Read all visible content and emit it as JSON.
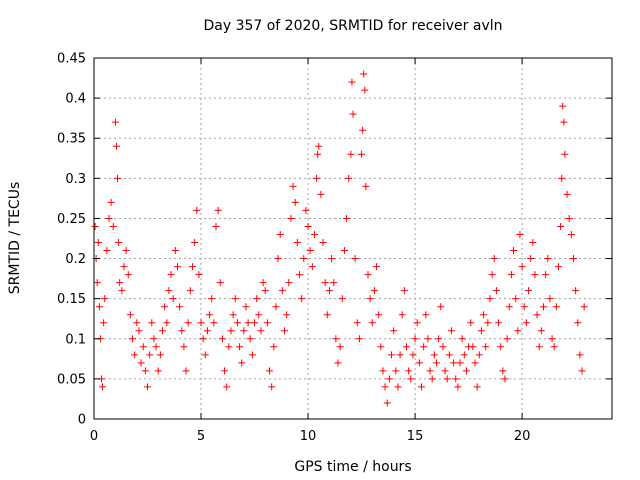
{
  "chart_data": {
    "type": "scatter",
    "title": "Day 357 of 2020, SRMTID for receiver avln",
    "xlabel": "GPS time / hours",
    "ylabel": "SRMTID / TECUs",
    "xlim": [
      0,
      24.2
    ],
    "ylim": [
      0,
      0.45
    ],
    "xticks": [
      0,
      5,
      10,
      15,
      20
    ],
    "xtick_labels": [
      "0",
      "5",
      "10",
      "15",
      "20"
    ],
    "yticks": [
      0,
      0.05,
      0.1,
      0.15,
      0.2,
      0.25,
      0.3,
      0.35,
      0.4,
      0.45
    ],
    "ytick_labels": [
      "0",
      "0.05",
      "0.1",
      "0.15",
      "0.2",
      "0.25",
      "0.3",
      "0.35",
      "0.4",
      "0.45"
    ],
    "grid": true,
    "marker": "+",
    "color": "#ff0000",
    "series": [
      {
        "name": "SRMTID",
        "points": [
          [
            0.05,
            0.24
          ],
          [
            0.1,
            0.2
          ],
          [
            0.15,
            0.17
          ],
          [
            0.2,
            0.22
          ],
          [
            0.25,
            0.14
          ],
          [
            0.3,
            0.1
          ],
          [
            0.35,
            0.05
          ],
          [
            0.4,
            0.04
          ],
          [
            0.45,
            0.12
          ],
          [
            0.5,
            0.15
          ],
          [
            0.6,
            0.21
          ],
          [
            0.7,
            0.25
          ],
          [
            0.8,
            0.27
          ],
          [
            0.9,
            0.24
          ],
          [
            1.0,
            0.37
          ],
          [
            1.05,
            0.34
          ],
          [
            1.1,
            0.3
          ],
          [
            1.15,
            0.22
          ],
          [
            1.2,
            0.17
          ],
          [
            1.3,
            0.16
          ],
          [
            1.4,
            0.19
          ],
          [
            1.5,
            0.21
          ],
          [
            1.6,
            0.18
          ],
          [
            1.7,
            0.13
          ],
          [
            1.8,
            0.1
          ],
          [
            1.9,
            0.08
          ],
          [
            2.0,
            0.12
          ],
          [
            2.1,
            0.11
          ],
          [
            2.2,
            0.07
          ],
          [
            2.3,
            0.09
          ],
          [
            2.4,
            0.06
          ],
          [
            2.5,
            0.04
          ],
          [
            2.6,
            0.08
          ],
          [
            2.7,
            0.12
          ],
          [
            2.8,
            0.1
          ],
          [
            2.9,
            0.09
          ],
          [
            3.0,
            0.06
          ],
          [
            3.1,
            0.08
          ],
          [
            3.2,
            0.11
          ],
          [
            3.3,
            0.14
          ],
          [
            3.4,
            0.12
          ],
          [
            3.5,
            0.16
          ],
          [
            3.6,
            0.18
          ],
          [
            3.7,
            0.15
          ],
          [
            3.8,
            0.21
          ],
          [
            3.9,
            0.19
          ],
          [
            4.0,
            0.14
          ],
          [
            4.1,
            0.11
          ],
          [
            4.2,
            0.09
          ],
          [
            4.3,
            0.06
          ],
          [
            4.4,
            0.12
          ],
          [
            4.5,
            0.16
          ],
          [
            4.6,
            0.19
          ],
          [
            4.7,
            0.22
          ],
          [
            4.8,
            0.26
          ],
          [
            4.9,
            0.18
          ],
          [
            5.0,
            0.12
          ],
          [
            5.1,
            0.1
          ],
          [
            5.2,
            0.08
          ],
          [
            5.3,
            0.11
          ],
          [
            5.4,
            0.13
          ],
          [
            5.5,
            0.15
          ],
          [
            5.6,
            0.12
          ],
          [
            5.7,
            0.24
          ],
          [
            5.8,
            0.26
          ],
          [
            5.9,
            0.17
          ],
          [
            6.0,
            0.1
          ],
          [
            6.1,
            0.06
          ],
          [
            6.2,
            0.04
          ],
          [
            6.3,
            0.09
          ],
          [
            6.4,
            0.11
          ],
          [
            6.5,
            0.13
          ],
          [
            6.6,
            0.15
          ],
          [
            6.7,
            0.12
          ],
          [
            6.8,
            0.09
          ],
          [
            6.9,
            0.07
          ],
          [
            7.0,
            0.11
          ],
          [
            7.1,
            0.14
          ],
          [
            7.2,
            0.12
          ],
          [
            7.3,
            0.1
          ],
          [
            7.4,
            0.08
          ],
          [
            7.5,
            0.12
          ],
          [
            7.6,
            0.15
          ],
          [
            7.7,
            0.13
          ],
          [
            7.8,
            0.11
          ],
          [
            7.9,
            0.17
          ],
          [
            8.0,
            0.16
          ],
          [
            8.1,
            0.12
          ],
          [
            8.2,
            0.06
          ],
          [
            8.3,
            0.04
          ],
          [
            8.4,
            0.09
          ],
          [
            8.5,
            0.14
          ],
          [
            8.6,
            0.2
          ],
          [
            8.7,
            0.23
          ],
          [
            8.8,
            0.16
          ],
          [
            8.9,
            0.11
          ],
          [
            9.0,
            0.13
          ],
          [
            9.1,
            0.17
          ],
          [
            9.2,
            0.25
          ],
          [
            9.3,
            0.29
          ],
          [
            9.4,
            0.27
          ],
          [
            9.5,
            0.22
          ],
          [
            9.6,
            0.18
          ],
          [
            9.7,
            0.15
          ],
          [
            9.8,
            0.2
          ],
          [
            9.9,
            0.26
          ],
          [
            10.0,
            0.24
          ],
          [
            10.1,
            0.21
          ],
          [
            10.2,
            0.19
          ],
          [
            10.3,
            0.23
          ],
          [
            10.4,
            0.3
          ],
          [
            10.45,
            0.33
          ],
          [
            10.5,
            0.34
          ],
          [
            10.6,
            0.28
          ],
          [
            10.7,
            0.22
          ],
          [
            10.8,
            0.17
          ],
          [
            10.9,
            0.13
          ],
          [
            11.0,
            0.16
          ],
          [
            11.1,
            0.2
          ],
          [
            11.2,
            0.17
          ],
          [
            11.3,
            0.1
          ],
          [
            11.4,
            0.07
          ],
          [
            11.5,
            0.09
          ],
          [
            11.6,
            0.15
          ],
          [
            11.7,
            0.21
          ],
          [
            11.8,
            0.25
          ],
          [
            11.9,
            0.3
          ],
          [
            12.0,
            0.33
          ],
          [
            12.05,
            0.42
          ],
          [
            12.1,
            0.38
          ],
          [
            12.2,
            0.2
          ],
          [
            12.3,
            0.12
          ],
          [
            12.4,
            0.1
          ],
          [
            12.5,
            0.33
          ],
          [
            12.55,
            0.36
          ],
          [
            12.6,
            0.43
          ],
          [
            12.65,
            0.41
          ],
          [
            12.7,
            0.29
          ],
          [
            12.8,
            0.18
          ],
          [
            12.9,
            0.15
          ],
          [
            13.0,
            0.12
          ],
          [
            13.1,
            0.16
          ],
          [
            13.2,
            0.19
          ],
          [
            13.3,
            0.13
          ],
          [
            13.4,
            0.09
          ],
          [
            13.5,
            0.06
          ],
          [
            13.6,
            0.04
          ],
          [
            13.7,
            0.02
          ],
          [
            13.8,
            0.05
          ],
          [
            13.9,
            0.08
          ],
          [
            14.0,
            0.11
          ],
          [
            14.1,
            0.06
          ],
          [
            14.2,
            0.04
          ],
          [
            14.3,
            0.08
          ],
          [
            14.4,
            0.13
          ],
          [
            14.5,
            0.16
          ],
          [
            14.6,
            0.09
          ],
          [
            14.7,
            0.06
          ],
          [
            14.8,
            0.05
          ],
          [
            14.9,
            0.08
          ],
          [
            15.0,
            0.1
          ],
          [
            15.1,
            0.12
          ],
          [
            15.2,
            0.07
          ],
          [
            15.3,
            0.04
          ],
          [
            15.4,
            0.09
          ],
          [
            15.5,
            0.13
          ],
          [
            15.6,
            0.1
          ],
          [
            15.7,
            0.06
          ],
          [
            15.8,
            0.05
          ],
          [
            15.9,
            0.08
          ],
          [
            16.0,
            0.07
          ],
          [
            16.1,
            0.1
          ],
          [
            16.2,
            0.14
          ],
          [
            16.3,
            0.09
          ],
          [
            16.4,
            0.06
          ],
          [
            16.5,
            0.05
          ],
          [
            16.6,
            0.08
          ],
          [
            16.7,
            0.11
          ],
          [
            16.8,
            0.07
          ],
          [
            16.9,
            0.05
          ],
          [
            17.0,
            0.04
          ],
          [
            17.1,
            0.07
          ],
          [
            17.2,
            0.1
          ],
          [
            17.3,
            0.08
          ],
          [
            17.4,
            0.06
          ],
          [
            17.5,
            0.09
          ],
          [
            17.6,
            0.12
          ],
          [
            17.7,
            0.09
          ],
          [
            17.8,
            0.07
          ],
          [
            17.9,
            0.04
          ],
          [
            18.0,
            0.08
          ],
          [
            18.1,
            0.11
          ],
          [
            18.2,
            0.13
          ],
          [
            18.3,
            0.09
          ],
          [
            18.4,
            0.12
          ],
          [
            18.5,
            0.15
          ],
          [
            18.6,
            0.18
          ],
          [
            18.7,
            0.2
          ],
          [
            18.8,
            0.16
          ],
          [
            18.9,
            0.12
          ],
          [
            19.0,
            0.09
          ],
          [
            19.1,
            0.06
          ],
          [
            19.2,
            0.05
          ],
          [
            19.3,
            0.1
          ],
          [
            19.4,
            0.14
          ],
          [
            19.5,
            0.18
          ],
          [
            19.6,
            0.21
          ],
          [
            19.7,
            0.15
          ],
          [
            19.8,
            0.11
          ],
          [
            19.9,
            0.23
          ],
          [
            20.0,
            0.19
          ],
          [
            20.1,
            0.14
          ],
          [
            20.2,
            0.12
          ],
          [
            20.3,
            0.16
          ],
          [
            20.4,
            0.2
          ],
          [
            20.5,
            0.22
          ],
          [
            20.6,
            0.18
          ],
          [
            20.7,
            0.13
          ],
          [
            20.8,
            0.09
          ],
          [
            20.9,
            0.11
          ],
          [
            21.0,
            0.14
          ],
          [
            21.1,
            0.18
          ],
          [
            21.2,
            0.2
          ],
          [
            21.3,
            0.15
          ],
          [
            21.4,
            0.1
          ],
          [
            21.5,
            0.09
          ],
          [
            21.6,
            0.14
          ],
          [
            21.7,
            0.19
          ],
          [
            21.8,
            0.24
          ],
          [
            21.85,
            0.3
          ],
          [
            21.9,
            0.39
          ],
          [
            21.95,
            0.37
          ],
          [
            22.0,
            0.33
          ],
          [
            22.1,
            0.28
          ],
          [
            22.2,
            0.25
          ],
          [
            22.3,
            0.23
          ],
          [
            22.4,
            0.2
          ],
          [
            22.5,
            0.16
          ],
          [
            22.6,
            0.12
          ],
          [
            22.7,
            0.08
          ],
          [
            22.8,
            0.06
          ],
          [
            22.9,
            0.14
          ]
        ]
      }
    ]
  }
}
